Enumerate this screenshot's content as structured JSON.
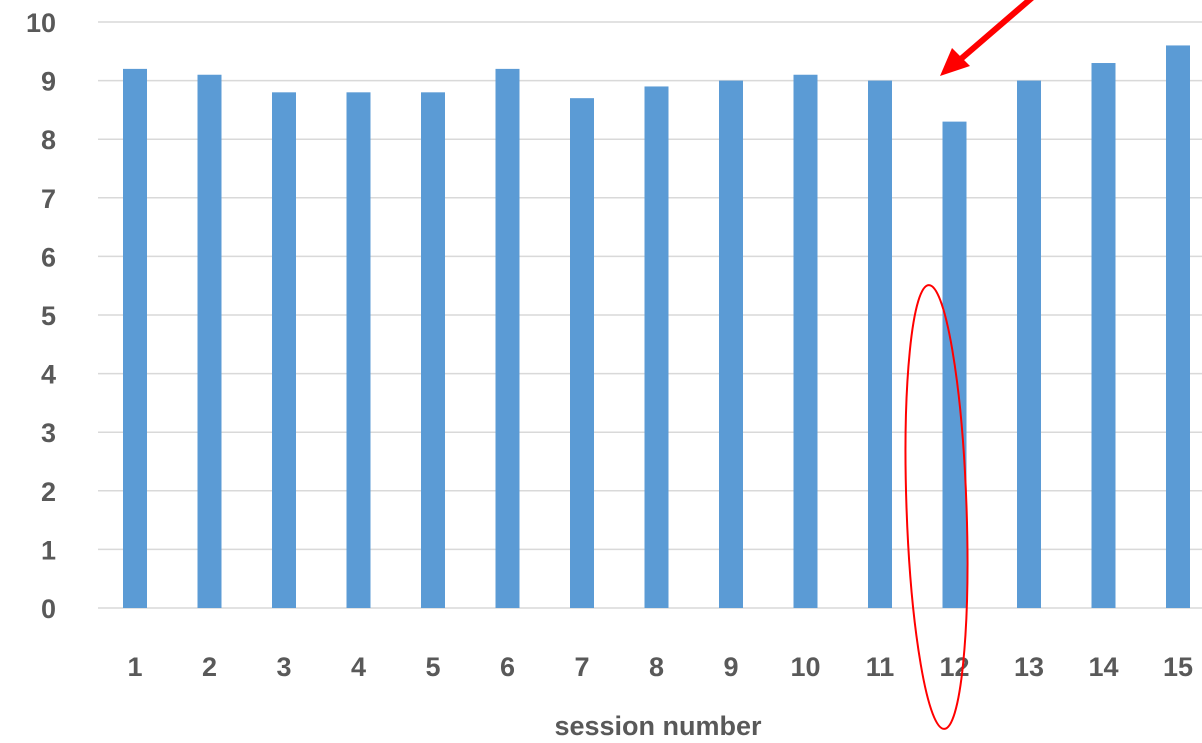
{
  "chart_data": {
    "type": "bar",
    "categories": [
      "1",
      "2",
      "3",
      "4",
      "5",
      "6",
      "7",
      "8",
      "9",
      "10",
      "11",
      "12",
      "13",
      "14",
      "15"
    ],
    "values": [
      9.2,
      9.1,
      8.8,
      8.8,
      8.8,
      9.2,
      8.7,
      8.9,
      9.0,
      9.1,
      9.0,
      8.3,
      9.0,
      9.3,
      9.6
    ],
    "yticks": [
      "0",
      "1",
      "2",
      "3",
      "4",
      "5",
      "6",
      "7",
      "8",
      "9",
      "10"
    ],
    "xlabel": "session number",
    "ylabel": "",
    "ylim": [
      0,
      10
    ],
    "grid": true,
    "bar_color": "#5b9bd5",
    "highlight": {
      "category": "12",
      "annotation": "red ellipse with red arrow",
      "color": "#ff0000"
    }
  }
}
